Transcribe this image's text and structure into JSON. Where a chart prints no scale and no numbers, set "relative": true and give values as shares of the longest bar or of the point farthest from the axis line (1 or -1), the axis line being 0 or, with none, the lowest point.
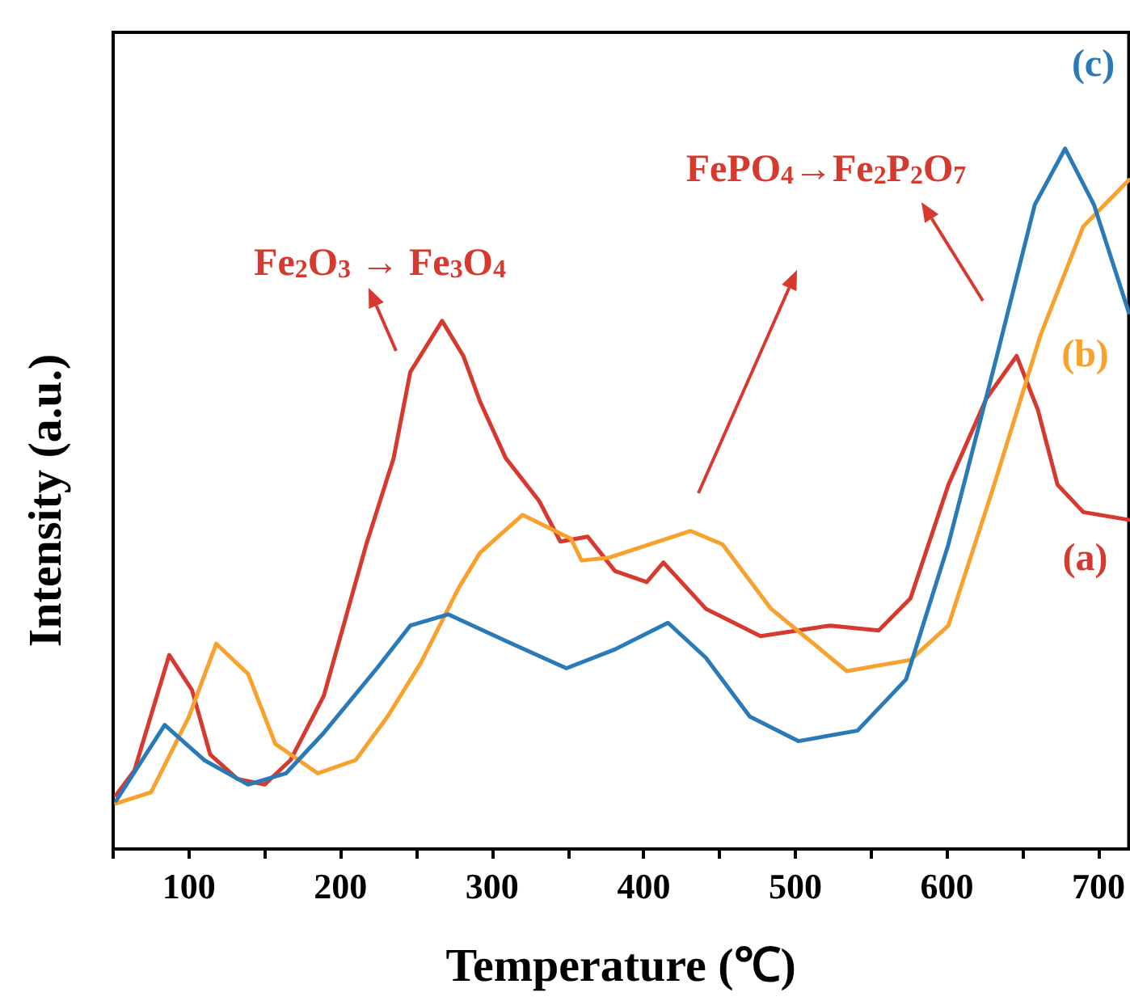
{
  "chart_data": {
    "type": "line",
    "relative": true,
    "xlabel": "Temperature (℃)",
    "ylabel": "Intensity (a.u.)",
    "xlim": [
      50,
      720
    ],
    "xticks": [
      {
        "value": 50,
        "label": null
      },
      100,
      {
        "value": 150,
        "label": null
      },
      200,
      {
        "value": 250,
        "label": null
      },
      300,
      {
        "value": 350,
        "label": null
      },
      400,
      {
        "value": 450,
        "label": null
      },
      500,
      {
        "value": 550,
        "label": null
      },
      600,
      {
        "value": 650,
        "label": null
      },
      700
    ],
    "grid": false,
    "legend": false,
    "marker": "none",
    "line_style": "solid",
    "series": [
      {
        "name": "(a)",
        "color": "#d63a2f",
        "x": [
          52,
          64,
          87,
          102,
          114,
          132,
          150,
          167,
          189,
          203,
          217,
          235,
          246,
          267,
          281,
          292,
          309,
          331,
          345,
          363,
          381,
          402,
          413,
          441,
          477,
          523,
          555,
          576,
          601,
          626,
          646,
          660,
          673,
          690,
          720
        ],
        "values": [
          0.077,
          0.112,
          0.277,
          0.227,
          0.135,
          0.1,
          0.092,
          0.127,
          0.219,
          0.327,
          0.435,
          0.558,
          0.681,
          0.754,
          0.704,
          0.639,
          0.558,
          0.497,
          0.439,
          0.446,
          0.397,
          0.381,
          0.409,
          0.343,
          0.304,
          0.319,
          0.312,
          0.358,
          0.52,
          0.643,
          0.704,
          0.627,
          0.52,
          0.481,
          0.47
        ]
      },
      {
        "name": "(b)",
        "color": "#f9a12e",
        "x": [
          52,
          75,
          100,
          118,
          139,
          157,
          185,
          210,
          231,
          253,
          278,
          292,
          320,
          352,
          359,
          377,
          431,
          452,
          484,
          534,
          576,
          601,
          630,
          662,
          690,
          720
        ],
        "values": [
          0.065,
          0.081,
          0.189,
          0.293,
          0.25,
          0.15,
          0.108,
          0.127,
          0.189,
          0.266,
          0.373,
          0.423,
          0.477,
          0.443,
          0.412,
          0.416,
          0.454,
          0.435,
          0.343,
          0.254,
          0.27,
          0.319,
          0.512,
          0.735,
          0.889,
          0.955
        ]
      },
      {
        "name": "(c)",
        "color": "#2a7ab8",
        "x": [
          52,
          84,
          110,
          139,
          164,
          189,
          224,
          246,
          271,
          310,
          349,
          381,
          416,
          441,
          470,
          502,
          541,
          573,
          601,
          633,
          658,
          678,
          697,
          720
        ],
        "values": [
          0.069,
          0.177,
          0.127,
          0.092,
          0.108,
          0.166,
          0.258,
          0.319,
          0.335,
          0.296,
          0.258,
          0.285,
          0.323,
          0.273,
          0.189,
          0.154,
          0.169,
          0.242,
          0.435,
          0.704,
          0.92,
          1.0,
          0.92,
          0.766
        ]
      }
    ],
    "annotations": [
      "Fe$_{2}$O$_{3}$ → Fe$_{3}$O$_{4}$",
      "FePO$_{4}$→Fe$_{2}$P$_{2}$O$_{7}$"
    ]
  }
}
